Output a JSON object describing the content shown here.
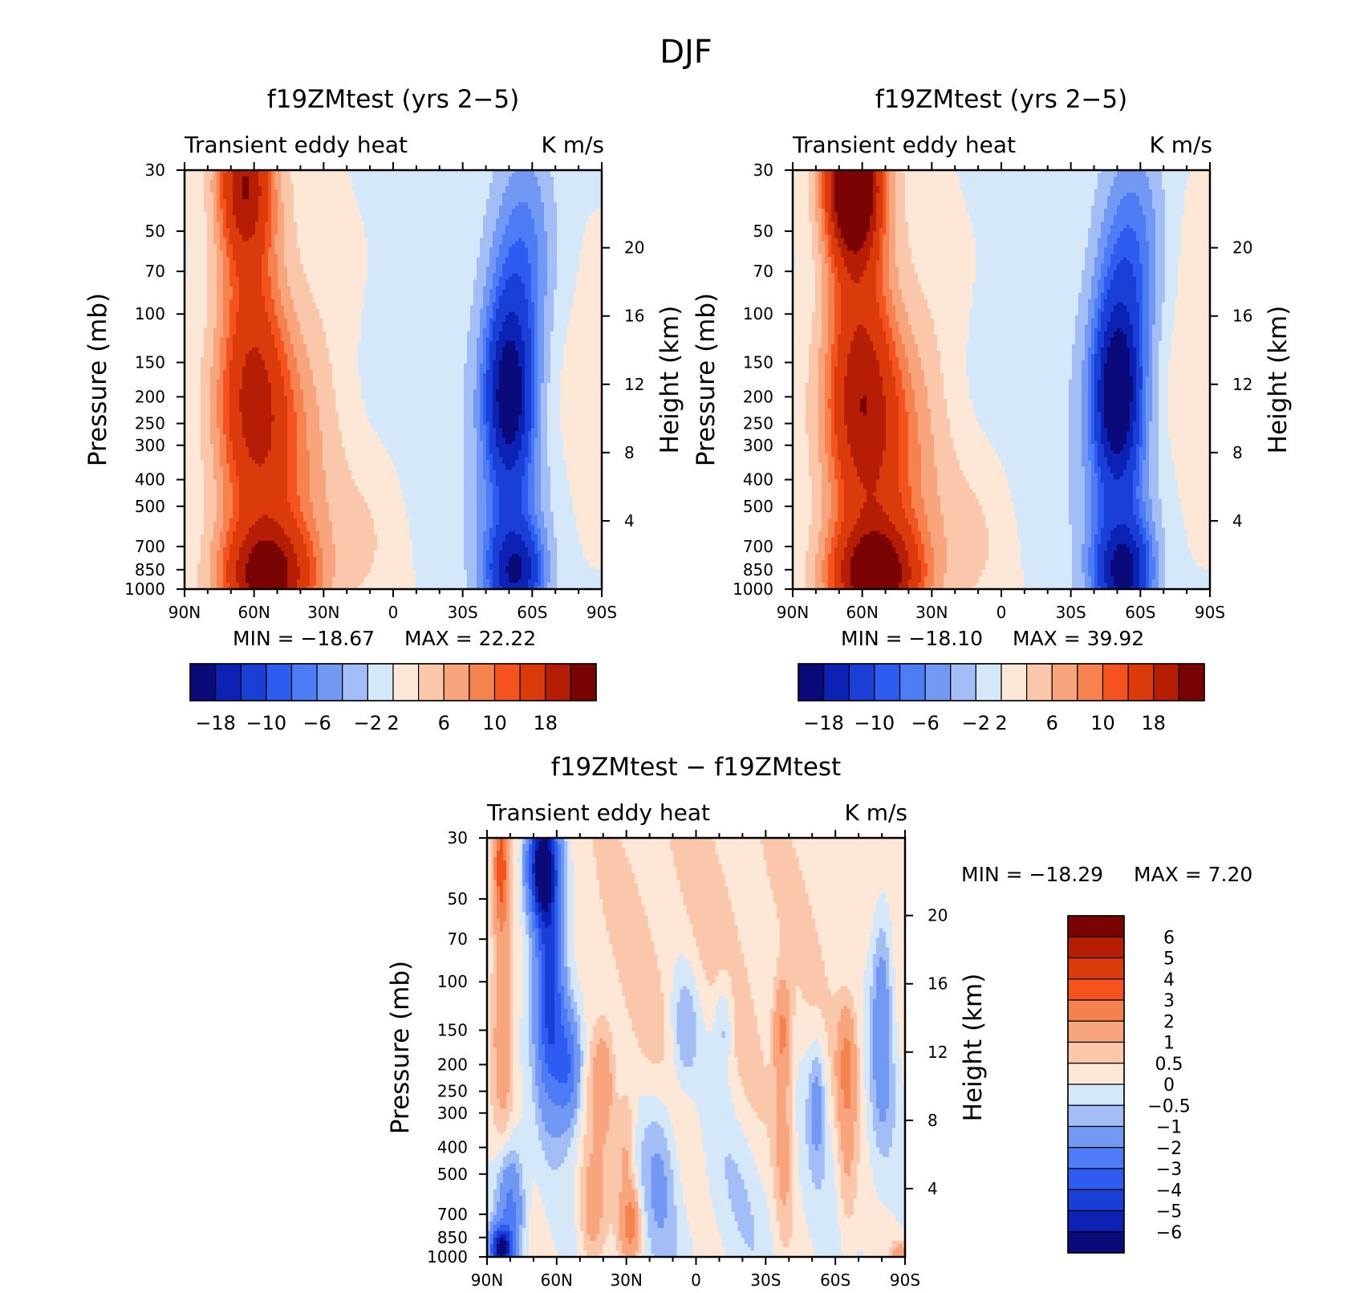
{
  "figure_title": "DJF",
  "chart_data": [
    {
      "type": "heatmap",
      "subtype": "filled-contour",
      "title": "f19ZMtest (yrs 2−5)",
      "subtitle_left": "Transient eddy heat",
      "subtitle_right": "K m/s",
      "ylabel": "Pressure (mb)",
      "ylabel_right": "Height (km)",
      "x_ticks": [
        "90N",
        "60N",
        "30N",
        "0",
        "30S",
        "60S",
        "90S"
      ],
      "x_values": [
        90,
        60,
        30,
        0,
        -30,
        -60,
        -90
      ],
      "y_ticks": [
        "30",
        "50",
        "70",
        "100",
        "150",
        "200",
        "250",
        "300",
        "400",
        "500",
        "700",
        "850",
        "1000"
      ],
      "y_values": [
        30,
        50,
        70,
        100,
        150,
        200,
        250,
        300,
        400,
        500,
        700,
        850,
        1000
      ],
      "ylim": [
        1000,
        30
      ],
      "height_ticks": [
        "4",
        "8",
        "12",
        "16",
        "20"
      ],
      "height_values_km": [
        4,
        8,
        12,
        16,
        20
      ],
      "min_label": "MIN = −18.67",
      "max_label": "MAX =   22.22",
      "min": -18.67,
      "max": 22.22,
      "colorbar_ticks": [
        "−18",
        "−10",
        "−6",
        "−2",
        "2",
        "6",
        "10",
        "18"
      ],
      "features": [
        {
          "lat": 65,
          "p": 40,
          "value": 15,
          "note": "upper NH maximum"
        },
        {
          "lat": 62,
          "p": 200,
          "value": 11
        },
        {
          "lat": 55,
          "p": 880,
          "value": 19,
          "note": "low-level NH maximum"
        },
        {
          "lat": -50,
          "p": 200,
          "value": -17,
          "note": "SH upper minimum"
        },
        {
          "lat": -53,
          "p": 850,
          "value": -14,
          "note": "SH low-level minimum"
        }
      ]
    },
    {
      "type": "heatmap",
      "subtype": "filled-contour",
      "title": "f19ZMtest (yrs 2−5)",
      "subtitle_left": "Transient eddy heat",
      "subtitle_right": "K m/s",
      "ylabel": "Pressure (mb)",
      "ylabel_right": "Height (km)",
      "x_ticks": [
        "90N",
        "60N",
        "30N",
        "0",
        "30S",
        "60S",
        "90S"
      ],
      "x_values": [
        90,
        60,
        30,
        0,
        -30,
        -60,
        -90
      ],
      "y_ticks": [
        "30",
        "50",
        "70",
        "100",
        "150",
        "200",
        "250",
        "300",
        "400",
        "500",
        "700",
        "850",
        "1000"
      ],
      "y_values": [
        30,
        50,
        70,
        100,
        150,
        200,
        250,
        300,
        400,
        500,
        700,
        850,
        1000
      ],
      "ylim": [
        1000,
        30
      ],
      "height_ticks": [
        "4",
        "8",
        "12",
        "16",
        "20"
      ],
      "height_values_km": [
        4,
        8,
        12,
        16,
        20
      ],
      "min_label": "MIN = −18.10",
      "max_label": "MAX =   39.92",
      "min": -18.1,
      "max": 39.92,
      "colorbar_ticks": [
        "−18",
        "−10",
        "−6",
        "−2",
        "2",
        "6",
        "10",
        "18"
      ],
      "features": [
        {
          "lat": 63,
          "p": 40,
          "value": 25,
          "note": "upper NH maximum"
        },
        {
          "lat": 60,
          "p": 200,
          "value": 11
        },
        {
          "lat": 58,
          "p": 880,
          "value": 19
        },
        {
          "lat": -50,
          "p": 200,
          "value": -17
        },
        {
          "lat": -53,
          "p": 850,
          "value": -14
        }
      ]
    },
    {
      "type": "heatmap",
      "subtype": "filled-contour",
      "title": "f19ZMtest − f19ZMtest",
      "subtitle_left": "Transient eddy heat",
      "subtitle_right": "K m/s",
      "ylabel": "Pressure (mb)",
      "ylabel_right": "Height (km)",
      "x_ticks": [
        "90N",
        "60N",
        "30N",
        "0",
        "30S",
        "60S",
        "90S"
      ],
      "x_values": [
        90,
        60,
        30,
        0,
        -30,
        -60,
        -90
      ],
      "y_ticks": [
        "30",
        "50",
        "70",
        "100",
        "150",
        "200",
        "250",
        "300",
        "400",
        "500",
        "700",
        "850",
        "1000"
      ],
      "y_values": [
        30,
        50,
        70,
        100,
        150,
        200,
        250,
        300,
        400,
        500,
        700,
        850,
        1000
      ],
      "ylim": [
        1000,
        30
      ],
      "height_ticks": [
        "4",
        "8",
        "12",
        "16",
        "20"
      ],
      "height_values_km": [
        4,
        8,
        12,
        16,
        20
      ],
      "min_label": "MIN = −18.29",
      "max_label": "MAX =    7.20",
      "min": -18.29,
      "max": 7.2,
      "colorbar_ticks": [
        "6",
        "5",
        "4",
        "3",
        "2",
        "1",
        "0.5",
        "0",
        "−0.5",
        "−1",
        "−2",
        "−3",
        "−4",
        "−5",
        "−6"
      ],
      "features": [
        {
          "lat": 65,
          "p": 40,
          "value": -6,
          "note": "upper NH minimum"
        },
        {
          "lat": 84,
          "p": 40,
          "value": 3
        },
        {
          "lat": 84,
          "p": 920,
          "value": -5
        },
        {
          "lat": 30,
          "p": 750,
          "value": 2
        },
        {
          "lat": -37,
          "p": 150,
          "value": 1.5
        },
        {
          "lat": -65,
          "p": 200,
          "value": 1.5
        },
        {
          "lat": -80,
          "p": 130,
          "value": -1.5
        }
      ]
    }
  ],
  "colors": {
    "main_scale_low_to_high": [
      "#0a0a7a",
      "#0b22b4",
      "#1a3fd6",
      "#2f5cf0",
      "#4d7cf5",
      "#7199f4",
      "#a3bef6",
      "#d5e8fa",
      "#fde8d8",
      "#fbc7aa",
      "#f8a47c",
      "#f6824f",
      "#f4531e",
      "#db3a0a",
      "#b51d05",
      "#7a0403"
    ],
    "diff_scale_low_to_high": [
      "#0a0a7a",
      "#0b22b4",
      "#1a3fd6",
      "#2f5cf0",
      "#4d7cf5",
      "#7199f4",
      "#a3bef6",
      "#d5e8fa",
      "#fde8d8",
      "#fbc7aa",
      "#f8a47c",
      "#f6824f",
      "#f4531e",
      "#db3a0a",
      "#b51d05",
      "#7a0403"
    ]
  }
}
